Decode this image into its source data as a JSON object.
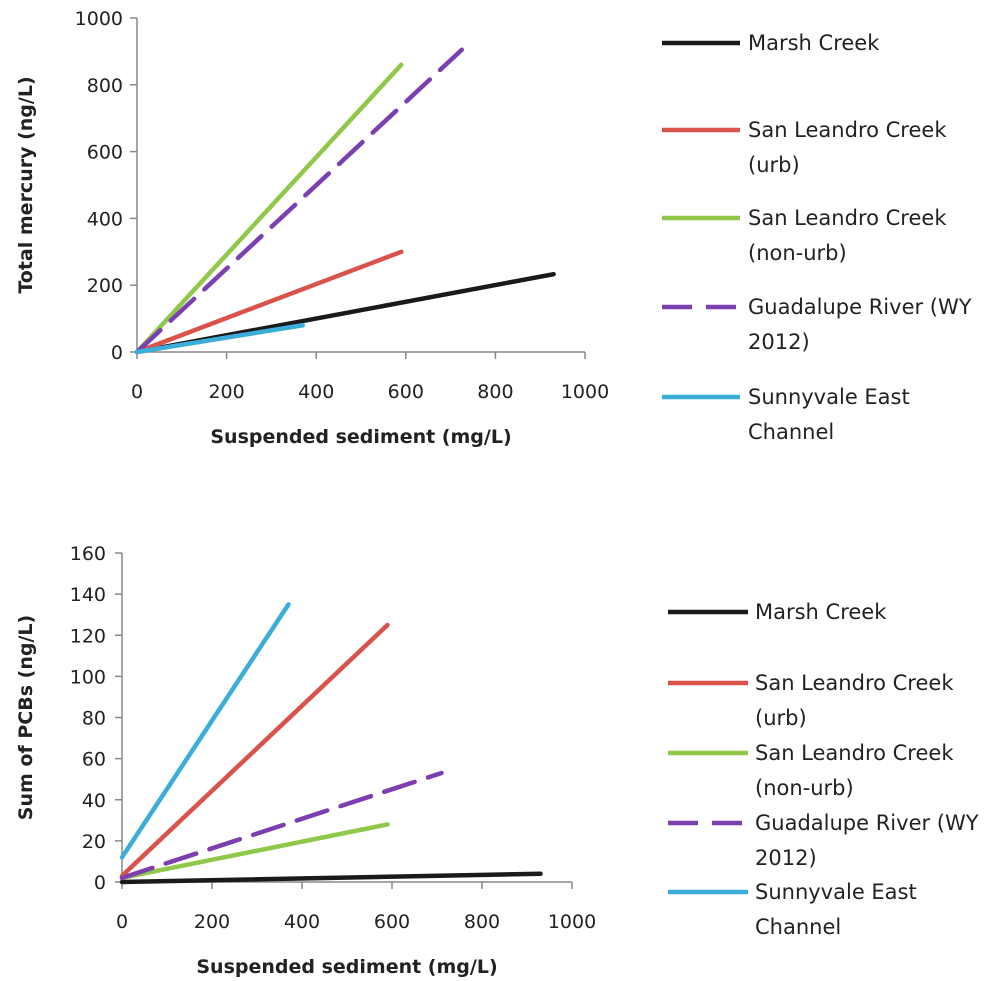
{
  "chart_data": [
    {
      "type": "line",
      "xlabel": "Suspended sediment (mg/L)",
      "ylabel": "Total mercury (ng/L)",
      "xlim": [
        0,
        1000
      ],
      "ylim": [
        0,
        1000
      ],
      "xticks": [
        "0",
        "200",
        "400",
        "600",
        "800",
        "1000"
      ],
      "yticks": [
        "0",
        "200",
        "400",
        "600",
        "800",
        "1000"
      ],
      "grid": false,
      "legend_placement": "right",
      "series": [
        {
          "name": "Marsh Creek",
          "name_lines": [
            "Marsh Creek"
          ],
          "color": "#1a1a1a",
          "dash": "solid",
          "x": [
            0,
            930
          ],
          "y": [
            0,
            233
          ]
        },
        {
          "name": "San Leandro Creek (urb)",
          "name_lines": [
            "San Leandro Creek",
            "(urb)"
          ],
          "color": "#d9534a",
          "dash": "solid",
          "x": [
            0,
            590
          ],
          "y": [
            0,
            300
          ]
        },
        {
          "name": "San Leandro Creek (non-urb)",
          "name_lines": [
            "San Leandro Creek",
            "(non-urb)"
          ],
          "color": "#8fc84a",
          "dash": "solid",
          "x": [
            0,
            590
          ],
          "y": [
            0,
            860
          ]
        },
        {
          "name": "Guadalupe River (WY 2012)",
          "name_lines": [
            "Guadalupe River (WY",
            "2012)"
          ],
          "color": "#7b3fb0",
          "dash": "dash",
          "x": [
            0,
            725
          ],
          "y": [
            0,
            905
          ]
        },
        {
          "name": "Sunnyvale East Channel",
          "name_lines": [
            "Sunnyvale East",
            "Channel"
          ],
          "color": "#3aaed8",
          "dash": "solid",
          "x": [
            0,
            370
          ],
          "y": [
            0,
            80
          ]
        }
      ]
    },
    {
      "type": "line",
      "xlabel": "Suspended sediment (mg/L)",
      "ylabel": "Sum of PCBs  (ng/L)",
      "xlim": [
        0,
        1000
      ],
      "ylim": [
        0,
        160
      ],
      "xticks": [
        "0",
        "200",
        "400",
        "600",
        "800",
        "1000"
      ],
      "yticks": [
        "0",
        "20",
        "40",
        "60",
        "80",
        "100",
        "120",
        "140",
        "160"
      ],
      "grid": false,
      "legend_placement": "right",
      "series": [
        {
          "name": "Marsh Creek",
          "name_lines": [
            "Marsh Creek"
          ],
          "color": "#1a1a1a",
          "dash": "solid",
          "x": [
            0,
            930
          ],
          "y": [
            0,
            4
          ]
        },
        {
          "name": "San Leandro Creek (urb)",
          "name_lines": [
            "San Leandro Creek",
            "(urb)"
          ],
          "color": "#d9534a",
          "dash": "solid",
          "x": [
            0,
            590
          ],
          "y": [
            3,
            125
          ]
        },
        {
          "name": "San Leandro Creek (non-urb)",
          "name_lines": [
            "San Leandro Creek",
            "(non-urb)"
          ],
          "color": "#8fc84a",
          "dash": "solid",
          "x": [
            0,
            590
          ],
          "y": [
            2,
            28
          ]
        },
        {
          "name": "Guadalupe River (WY 2012)",
          "name_lines": [
            "Guadalupe River (WY",
            "2012)"
          ],
          "color": "#7b3fb0",
          "dash": "dash",
          "x": [
            0,
            710
          ],
          "y": [
            2,
            53
          ]
        },
        {
          "name": "Sunnyvale East Channel",
          "name_lines": [
            "Sunnyvale East",
            "Channel"
          ],
          "color": "#3aaed8",
          "dash": "solid",
          "x": [
            0,
            370
          ],
          "y": [
            12,
            135
          ]
        }
      ]
    }
  ]
}
